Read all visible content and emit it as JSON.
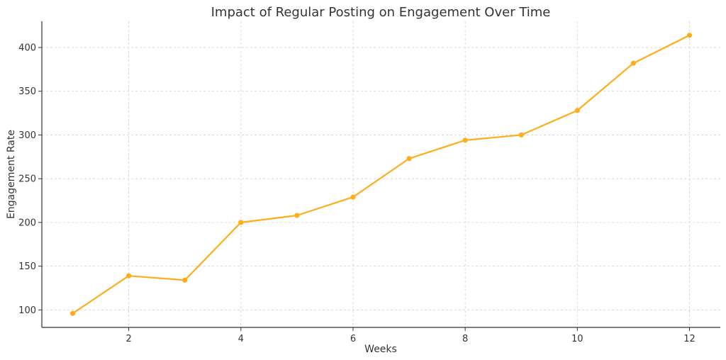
{
  "chart_data": {
    "type": "line",
    "title": "Impact of Regular Posting on Engagement Over Time",
    "xlabel": "Weeks",
    "ylabel": "Engagement Rate",
    "xlim": [
      0.45,
      12.55
    ],
    "ylim": [
      80,
      430
    ],
    "xticks": [
      2,
      4,
      6,
      8,
      10,
      12
    ],
    "yticks": [
      100,
      150,
      200,
      250,
      300,
      350,
      400
    ],
    "grid": true,
    "series": [
      {
        "color": "#FFAE1A",
        "marker": "circle",
        "x": [
          1,
          2,
          3,
          4,
          5,
          6,
          7,
          8,
          9,
          10,
          11,
          12
        ],
        "y": [
          96,
          139,
          134,
          200,
          208,
          229,
          273,
          294,
          300,
          328,
          382,
          414
        ]
      }
    ]
  }
}
